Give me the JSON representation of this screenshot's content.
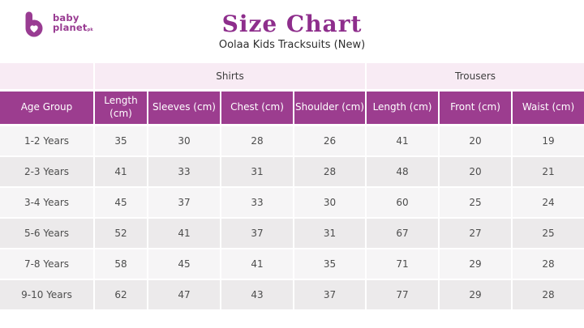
{
  "brand": {
    "logo_line1": "baby",
    "logo_line2": "planet",
    "logo_suffix": "pk",
    "logo_icon": "b-with-heart",
    "logo_color": "#993C92"
  },
  "chart_data": {
    "type": "table",
    "title": "Size Chart",
    "subtitle": "Oolaa Kids Tracksuits (New)",
    "group_headers": [
      {
        "label": "",
        "span": 1
      },
      {
        "label": "Shirts",
        "span": 4
      },
      {
        "label": "Trousers",
        "span": 3
      }
    ],
    "columns": [
      "Age Group",
      "Length (cm)",
      "Sleeves (cm)",
      "Chest (cm)",
      "Shoulder (cm)",
      "Length (cm)",
      "Front (cm)",
      "Waist (cm)"
    ],
    "rows": [
      {
        "age_group": "1-2 Years",
        "values": [
          35,
          30,
          28,
          26,
          41,
          20,
          19
        ]
      },
      {
        "age_group": "2-3 Years",
        "values": [
          41,
          33,
          31,
          28,
          48,
          20,
          21
        ]
      },
      {
        "age_group": "3-4 Years",
        "values": [
          45,
          37,
          33,
          30,
          60,
          25,
          24
        ]
      },
      {
        "age_group": "5-6 Years",
        "values": [
          52,
          41,
          37,
          31,
          67,
          27,
          25
        ]
      },
      {
        "age_group": "7-8 Years",
        "values": [
          58,
          45,
          41,
          35,
          71,
          29,
          28
        ]
      },
      {
        "age_group": "9-10 Years",
        "values": [
          62,
          47,
          43,
          37,
          77,
          29,
          28
        ]
      }
    ]
  },
  "colors": {
    "header_purple": "#9C3D8F",
    "title_purple": "#8E2E8C",
    "group_row_pink": "#F8EBF4",
    "row_light": "#F6F5F6",
    "row_dark": "#ECEAEB",
    "cell_text": "#4D4D4D",
    "logo_purple": "#993C92"
  }
}
